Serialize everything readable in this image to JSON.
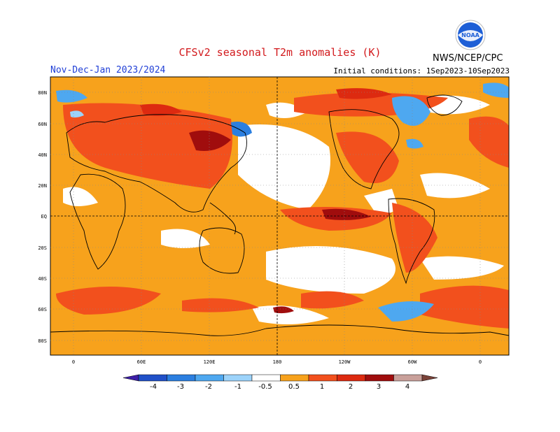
{
  "header": {
    "title": "CFSv2 seasonal T2m anomalies (K)",
    "season": "Nov-Dec-Jan 2023/2024",
    "initial_conditions": "Initial conditions: 1Sep2023-10Sep2023",
    "agency": "NWS/NCEP/CPC",
    "logo_text": "NOAA"
  },
  "map": {
    "lat_labels": [
      "80N",
      "60N",
      "40N",
      "20N",
      "EQ",
      "20S",
      "40S",
      "60S",
      "80S"
    ],
    "lon_labels": [
      "0",
      "60E",
      "120E",
      "180",
      "120W",
      "60W",
      "0"
    ]
  },
  "colorbar": {
    "labels": [
      "-4",
      "-3",
      "-2",
      "-1",
      "-0.5",
      "0.5",
      "1",
      "2",
      "3",
      "4"
    ],
    "colors": [
      "#3d1fa8",
      "#2050c8",
      "#2b7fe0",
      "#4ea8f0",
      "#9cd3fa",
      "#ffffff",
      "#f7a21c",
      "#f2501d",
      "#dd2a10",
      "#a00d0d",
      "#c9a09a",
      "#7a4238"
    ]
  },
  "legend_colors": {
    "warm1": "#f7a21c",
    "warm2": "#f2501d",
    "warm3": "#dd2a10",
    "warm4": "#a00d0d",
    "cool1": "#9cd3fa",
    "cool2": "#4ea8f0",
    "cool3": "#2b7fe0"
  }
}
